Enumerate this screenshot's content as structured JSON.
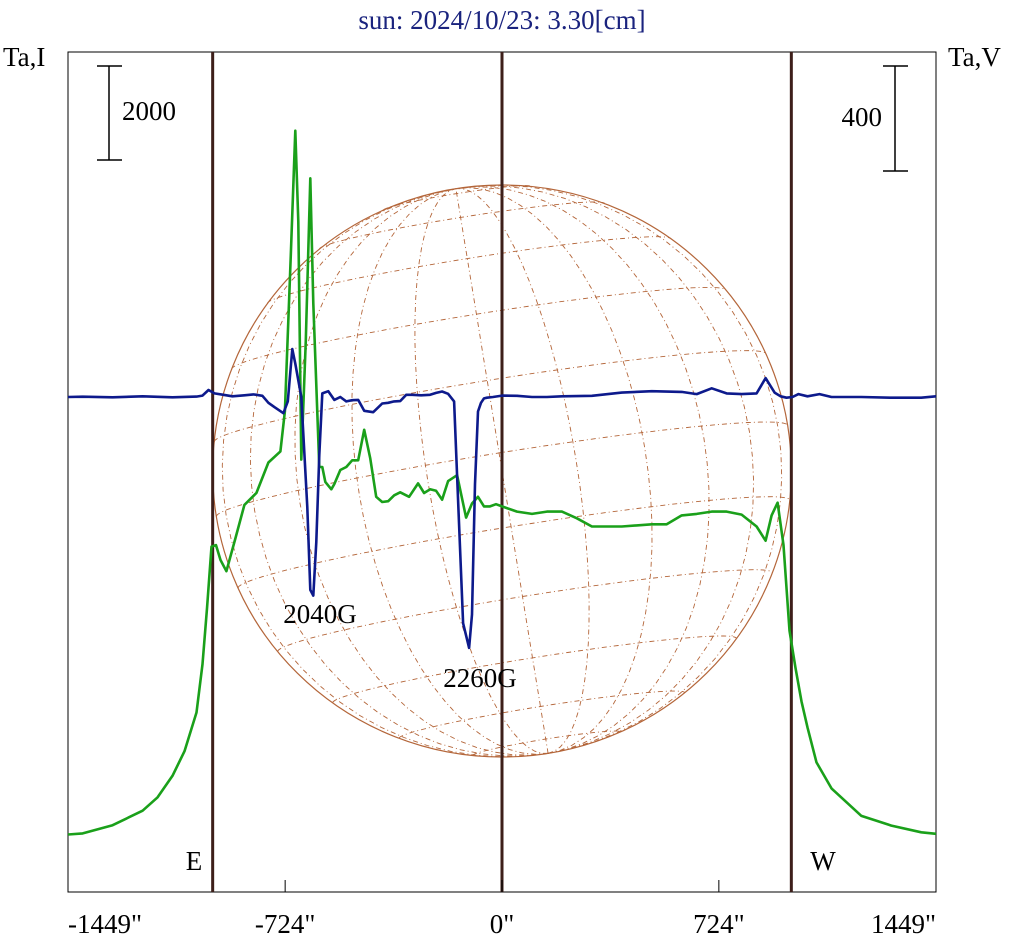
{
  "colors": {
    "frame": "#000000",
    "title": "#1a237e",
    "intensity": "#1aa01a",
    "polarization": "#0d1a8c",
    "limb": "#3d1f1a",
    "grid": "#b4663a"
  },
  "chart_data": {
    "type": "line",
    "title": "sun: 2024/10/23: 3.30[cm]",
    "left_axis_label": "Ta,I",
    "right_axis_label": "Ta,V",
    "xlim": [
      -1449,
      1449
    ],
    "x_ticks": [
      -1449,
      -724,
      0,
      724,
      1449
    ],
    "x_tick_labels": [
      "-1449\"",
      "-724\"",
      "0\"",
      "724\"",
      "1449\""
    ],
    "limb_positions": [
      -966,
      0,
      966
    ],
    "limb_labels": {
      "east": "E",
      "west": "W"
    },
    "scale_bars": {
      "left": "2000",
      "right": "400"
    },
    "disk_radius_arcsec": 966,
    "annotations": [
      {
        "text": "2040G",
        "x": -605
      },
      {
        "text": "2260G",
        "x": -80
      }
    ],
    "series": [
      {
        "x": [
          -1449,
          -1400,
          -1300,
          -1200,
          -1150,
          -1100,
          -1060,
          -1020,
          -1000,
          -985,
          -970,
          -955,
          -940,
          -920,
          -890,
          -860,
          -820,
          -780,
          -740,
          -725,
          -705,
          -690,
          -680,
          -670,
          -655,
          -640,
          -630,
          -610,
          -600,
          -590,
          -570,
          -560,
          -540,
          -520,
          -500,
          -480,
          -460,
          -440,
          -420,
          -400,
          -380,
          -360,
          -340,
          -310,
          -280,
          -260,
          -240,
          -220,
          -200,
          -180,
          -150,
          -120,
          -100,
          -80,
          -60,
          -40,
          -20,
          0,
          50,
          100,
          150,
          200,
          250,
          300,
          400,
          500,
          550,
          600,
          650,
          700,
          750,
          800,
          850,
          880,
          900,
          920,
          940,
          960,
          980,
          1000,
          1020,
          1050,
          1100,
          1200,
          1300,
          1400,
          1449
        ],
        "values": [
          60,
          75,
          185,
          380,
          560,
          850,
          1180,
          1700,
          2350,
          3100,
          3930,
          3950,
          3750,
          3600,
          4040,
          4490,
          4650,
          5060,
          5210,
          5750,
          7850,
          9520,
          8300,
          5100,
          6700,
          8880,
          7200,
          5000,
          5000,
          4800,
          4700,
          4770,
          4960,
          5000,
          5090,
          5090,
          5500,
          5120,
          4600,
          4530,
          4540,
          4620,
          4660,
          4600,
          4780,
          4650,
          4700,
          4680,
          4560,
          4810,
          4890,
          4320,
          4510,
          4600,
          4470,
          4470,
          4500,
          4470,
          4400,
          4370,
          4400,
          4400,
          4310,
          4200,
          4200,
          4230,
          4230,
          4350,
          4370,
          4400,
          4400,
          4360,
          4200,
          4010,
          4350,
          4520,
          3950,
          2800,
          2300,
          1850,
          1500,
          1030,
          680,
          310,
          180,
          90,
          70
        ]
      },
      {
        "x": [
          -1449,
          -1400,
          -1300,
          -1200,
          -1100,
          -1020,
          -1000,
          -980,
          -960,
          -930,
          -900,
          -860,
          -830,
          -800,
          -780,
          -760,
          -730,
          -715,
          -700,
          -690,
          -670,
          -660,
          -650,
          -640,
          -630,
          -620,
          -610,
          -600,
          -580,
          -560,
          -540,
          -520,
          -500,
          -480,
          -460,
          -430,
          -400,
          -380,
          -360,
          -340,
          -320,
          -300,
          -270,
          -240,
          -220,
          -200,
          -180,
          -160,
          -145,
          -130,
          -110,
          -100,
          -90,
          -80,
          -70,
          -60,
          -50,
          -30,
          0,
          50,
          100,
          150,
          200,
          300,
          400,
          500,
          600,
          650,
          700,
          750,
          800,
          850,
          880,
          910,
          930,
          950,
          970,
          990,
          1020,
          1060,
          1100,
          1200,
          1300,
          1400,
          1449
        ],
        "values": [
          0,
          2,
          -2,
          5,
          -2,
          3,
          10,
          48,
          25,
          15,
          5,
          12,
          18,
          8,
          -40,
          -70,
          -112,
          -30,
          330,
          230,
          0,
          -380,
          -760,
          -1330,
          -1370,
          -1000,
          -400,
          25,
          40,
          -20,
          0,
          -30,
          -22,
          -20,
          -95,
          -105,
          -45,
          -40,
          -30,
          -28,
          15,
          15,
          12,
          15,
          28,
          38,
          22,
          -30,
          -800,
          -1560,
          -1730,
          -1500,
          -600,
          -100,
          -40,
          -10,
          -5,
          0,
          10,
          8,
          0,
          0,
          5,
          8,
          30,
          40,
          35,
          20,
          60,
          25,
          20,
          25,
          130,
          30,
          5,
          -5,
          0,
          20,
          5,
          20,
          0,
          0,
          -5,
          -5,
          5
        ]
      }
    ]
  }
}
